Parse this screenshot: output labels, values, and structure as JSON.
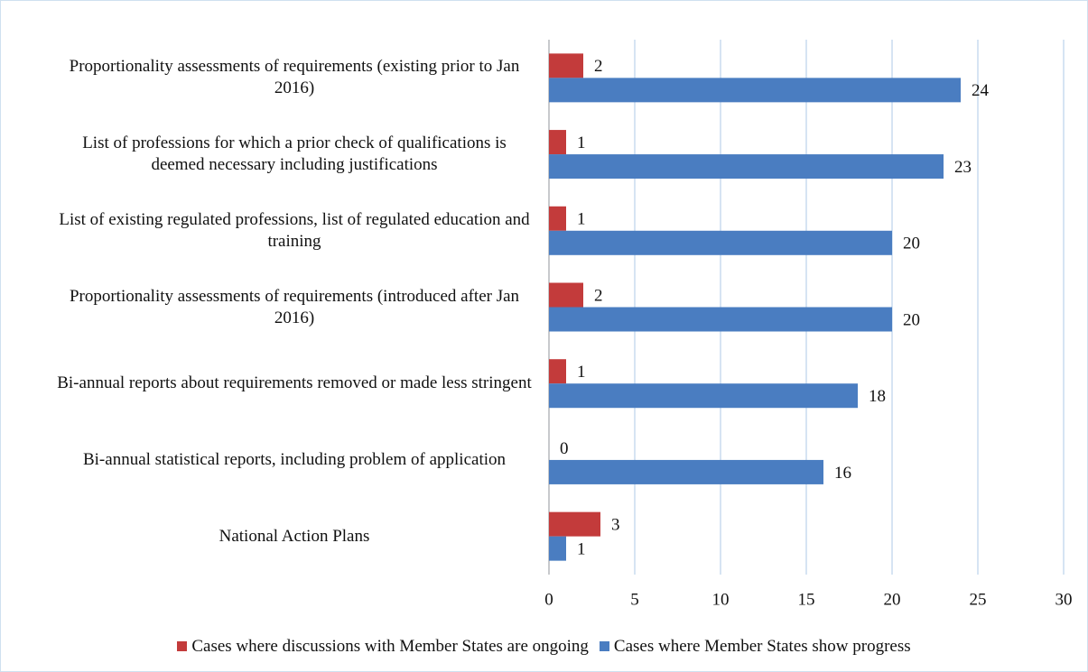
{
  "chart_data": {
    "type": "hbar",
    "categories": [
      "Proportionality assessments of requirements (existing prior to Jan 2016)",
      "List of professions for which a prior check of qualifications is deemed necessary including justifications",
      "List of existing regulated professions, list of regulated education and training",
      "Proportionality assessments of requirements (introduced after Jan 2016)",
      "Bi-annual reports about requirements removed or made less stringent",
      "Bi-annual statistical reports, including problem of application",
      "National Action Plans"
    ],
    "series": [
      {
        "name": "Cases where discussions with Member States are ongoing",
        "color": "#c33b3b",
        "values": [
          2,
          1,
          1,
          2,
          1,
          0,
          3
        ]
      },
      {
        "name": "Cases where Member States show progress",
        "color": "#4a7dc1",
        "values": [
          24,
          23,
          20,
          20,
          18,
          16,
          1
        ]
      }
    ],
    "xlim": [
      0,
      30
    ],
    "xticks": [
      0,
      5,
      10,
      15,
      20,
      25,
      30
    ],
    "grid": true
  }
}
